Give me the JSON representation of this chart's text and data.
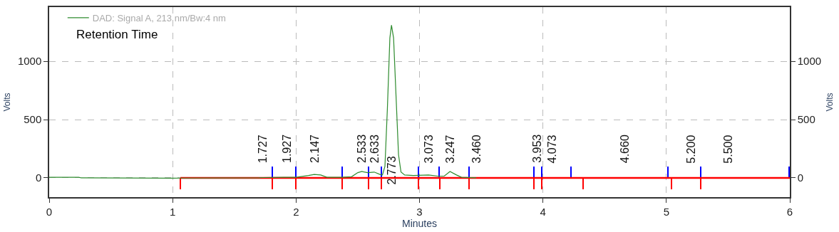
{
  "chart_data": {
    "type": "line",
    "xlabel": "Minutes",
    "ylabel": "Volts",
    "y2label": "Volts",
    "xlim": [
      0,
      6
    ],
    "xticks": [
      0,
      1,
      2,
      3,
      4,
      5,
      6
    ],
    "ylim": [
      -165,
      1465
    ],
    "yticks": [
      0,
      500,
      1000
    ],
    "y2lim": [
      -165,
      1465
    ],
    "y2ticks": [
      0,
      500,
      1000
    ],
    "grid": true,
    "legend": "top left",
    "line_style": "solid",
    "marker": "none",
    "series": [
      {
        "type": "line",
        "color": "#ff0000",
        "x": [
          1.063,
          6
        ],
        "values": [
          0,
          0
        ]
      },
      {
        "type": "bar",
        "color": "#0000ff",
        "x": [
          1.806,
          2.0,
          2.371,
          2.589,
          2.691,
          2.994,
          3.16,
          3.4,
          3.926,
          3.989,
          4.229,
          5.011,
          5.28,
          5.994
        ],
        "values": [
          100,
          100,
          100,
          100,
          100,
          100,
          100,
          100,
          100,
          100,
          100,
          100,
          100,
          100
        ]
      },
      {
        "type": "bar",
        "color": "#ff0000",
        "x": [
          1.063,
          1.806,
          2.0,
          2.371,
          2.589,
          2.691,
          2.994,
          3.166,
          3.4,
          3.926,
          3.989,
          4.326,
          5.04,
          5.28
        ],
        "values": [
          -100,
          -100,
          -100,
          -100,
          -100,
          -100,
          -100,
          -100,
          -100,
          -100,
          -100,
          -100,
          -100,
          -100
        ]
      },
      {
        "name": "DAD: Signal A, 213 nm/Bw:4 nm",
        "color": "#2e8b2e",
        "x": [
          0,
          0.24,
          0.26,
          1.0,
          1.7,
          1.727,
          1.9,
          1.927,
          2.0,
          2.1,
          2.147,
          2.2,
          2.25,
          2.37,
          2.45,
          2.5,
          2.533,
          2.58,
          2.633,
          2.68,
          2.7,
          2.72,
          2.74,
          2.76,
          2.773,
          2.79,
          2.81,
          2.83,
          2.85,
          2.88,
          2.95,
          3.073,
          3.15,
          3.2,
          3.247,
          3.3,
          3.34,
          3.46
        ],
        "values": [
          5,
          5,
          0,
          -2,
          0,
          3,
          5,
          5,
          5,
          20,
          30,
          25,
          5,
          5,
          10,
          45,
          55,
          45,
          50,
          30,
          25,
          100,
          600,
          1200,
          1310,
          1200,
          700,
          200,
          50,
          25,
          20,
          25,
          15,
          15,
          55,
          25,
          5,
          0
        ]
      }
    ],
    "annotations": [
      "Retention Time",
      {
        "text": "1.727",
        "x": 1.727,
        "y": 0
      },
      {
        "text": "1.927",
        "x": 1.927,
        "y": 0
      },
      {
        "text": "2.147",
        "x": 2.147,
        "y": 0
      },
      {
        "text": "2.533",
        "x": 2.533,
        "y": 0
      },
      {
        "text": "2.633",
        "x": 2.633,
        "y": 0
      },
      {
        "text": "2.773",
        "x": 2.773,
        "y": 0
      },
      {
        "text": "3.073",
        "x": 3.073,
        "y": 0
      },
      {
        "text": "3.247",
        "x": 3.247,
        "y": 0
      },
      {
        "text": "3.460",
        "x": 3.46,
        "y": 0
      },
      {
        "text": "3.953",
        "x": 3.953,
        "y": 0
      },
      {
        "text": "4.073",
        "x": 4.073,
        "y": 0
      },
      {
        "text": "4.660",
        "x": 4.66,
        "y": 0
      },
      {
        "text": "5.200",
        "x": 5.2,
        "y": 0
      },
      {
        "text": "5.500",
        "x": 5.5,
        "y": 0
      }
    ]
  }
}
